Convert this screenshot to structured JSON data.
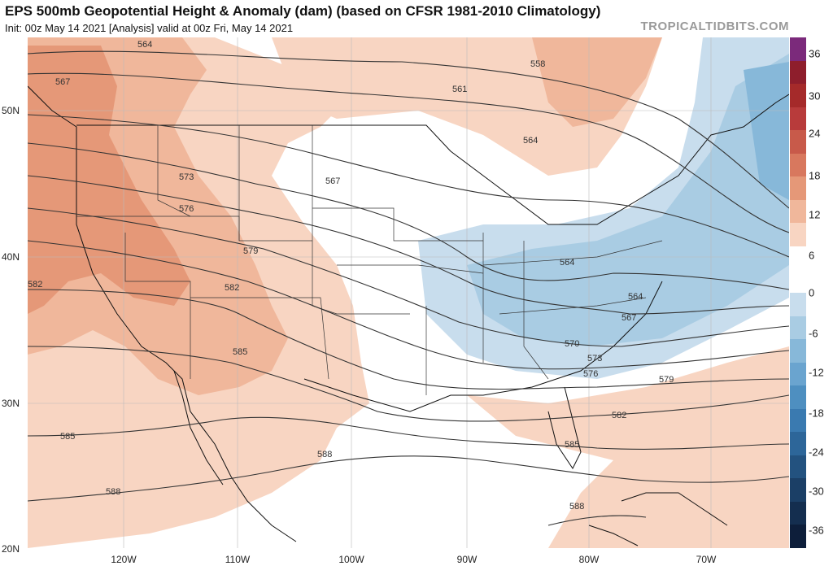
{
  "header": {
    "title": "EPS 500mb Geopotential Height & Anomaly (dam) (based on CFSR 1981-2010 Climatology)",
    "subtitle": "Init: 00z May 14 2021   [Analysis]   valid at 00z Fri, May 14 2021",
    "brand": "TROPICALTIDBITS.COM"
  },
  "axes": {
    "lat_labels": [
      "50N",
      "40N",
      "30N",
      "20N"
    ],
    "lon_labels": [
      "120W",
      "110W",
      "100W",
      "90W",
      "80W",
      "70W"
    ]
  },
  "contours": {
    "labels": [
      "564",
      "567",
      "561",
      "558",
      "564",
      "573",
      "576",
      "579",
      "582",
      "582",
      "585",
      "567",
      "564",
      "564",
      "567",
      "570",
      "573",
      "576",
      "579",
      "582",
      "585",
      "585",
      "588",
      "588",
      "588"
    ]
  },
  "colorbar": {
    "labels": [
      "36",
      "30",
      "24",
      "18",
      "12",
      "6",
      "0",
      "-6",
      "-12",
      "-18",
      "-24",
      "-30",
      "-36"
    ],
    "colors": [
      "#7b2a7b",
      "#8e1e2c",
      "#a52a2a",
      "#b83b3b",
      "#c85a4a",
      "#d8785e",
      "#e59878",
      "#f0b79b",
      "#f8d5c2",
      "#ffffff",
      "#ffffff",
      "#c8dded",
      "#a9cce3",
      "#87b8d9",
      "#6aa4cf",
      "#4e8fc0",
      "#3a7ab0",
      "#2d6699",
      "#23527f",
      "#1b3f66",
      "#142e4f",
      "#0d1e3a"
    ]
  }
}
